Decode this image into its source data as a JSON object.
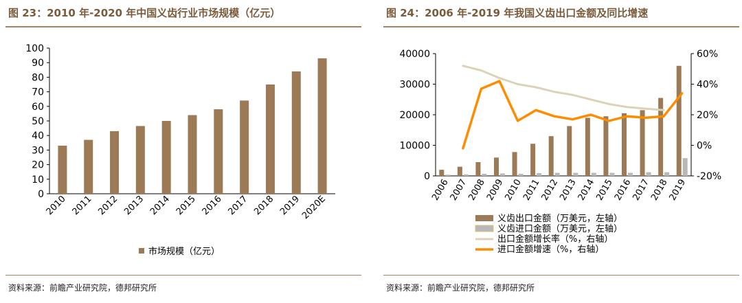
{
  "left": {
    "figure_title": "图 23：2010 年-2020 年中国义齿行业市场规模（亿元）",
    "source": "资料来源：前瞻产业研究院，德邦研究所"
  },
  "right": {
    "figure_title": "图 24：2006 年-2019 年我国义齿出口金额及同比增速",
    "source": "资料来源：前瞻产业研究院，德邦研究所"
  },
  "colors": {
    "title": "#7a5c3c",
    "bar_brown": "#9c7a56",
    "bar_gray": "#b8b8b8",
    "line_beige": "#ddd2b8",
    "line_orange": "#ff8c00"
  },
  "chart_data": [
    {
      "type": "bar",
      "categories": [
        "2010",
        "2011",
        "2012",
        "2013",
        "2014",
        "2015",
        "2016",
        "2017",
        "2018",
        "2019",
        "2020E"
      ],
      "series": [
        {
          "name": "市场规模（亿元）",
          "values": [
            33,
            37,
            43,
            46.5,
            50,
            54,
            58,
            64,
            75,
            84,
            93
          ]
        }
      ],
      "yticks": [
        "0",
        "10",
        "20",
        "30",
        "40",
        "50",
        "60",
        "70",
        "80",
        "90",
        "100"
      ],
      "ylim": [
        0,
        100
      ],
      "legend": "bottom",
      "grid": false
    },
    {
      "type": "bar",
      "categories": [
        "2006",
        "2007",
        "2008",
        "2009",
        "2010",
        "2011",
        "2012",
        "2013",
        "2014",
        "2015",
        "2016",
        "2017",
        "2018",
        "2019"
      ],
      "series": [
        {
          "name": "义齿出口金额（万美元，左轴）",
          "type": "bar",
          "axis": "left",
          "values": [
            2000,
            3000,
            4500,
            6000,
            7800,
            10500,
            13000,
            16300,
            19000,
            19500,
            20500,
            21500,
            25500,
            36000
          ]
        },
        {
          "name": "义齿进口金额（万美元，左轴）",
          "type": "bar",
          "axis": "left",
          "values": [
            400,
            500,
            700,
            800,
            700,
            900,
            1000,
            1000,
            1000,
            1000,
            1000,
            1200,
            1200,
            5800
          ]
        },
        {
          "name": "出口金额增长率（%，右轴）",
          "type": "line",
          "axis": "right",
          "values": [
            null,
            52,
            49,
            44,
            40,
            38,
            35,
            33,
            30,
            27,
            25,
            24,
            23,
            null
          ]
        },
        {
          "name": "进口金额增速（%，右轴）",
          "type": "line",
          "axis": "right",
          "values": [
            null,
            -2,
            37,
            42,
            16,
            23,
            19,
            17,
            20,
            16,
            19,
            18,
            19,
            34
          ]
        }
      ],
      "yticks_left": [
        "0",
        "10000",
        "20000",
        "30000",
        "40000"
      ],
      "ylim_left": [
        0,
        40000
      ],
      "yticks_right": [
        "-20%",
        "0%",
        "20%",
        "40%",
        "60%"
      ],
      "ylim_right": [
        -20,
        60
      ],
      "legend": "bottom",
      "grid": false
    }
  ]
}
